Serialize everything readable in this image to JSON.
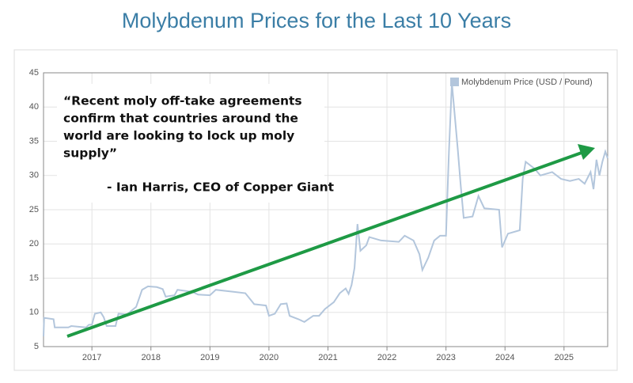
{
  "chart_data": {
    "type": "line",
    "title": "Molybdenum Prices for the Last 10 Years",
    "annotations": [
      "“Recent moly off-take agreements",
      "confirm that countries around the",
      "world are looking to lock up moly",
      "supply”",
      "- Ian Harris, CEO of Copper Giant"
    ],
    "x": [
      2016.18,
      2016.19,
      2016.35,
      2016.37,
      2016.6,
      2016.65,
      2016.9,
      2016.95,
      2017.0,
      2017.05,
      2017.15,
      2017.2,
      2017.25,
      2017.4,
      2017.45,
      2017.6,
      2017.65,
      2017.75,
      2017.85,
      2017.95,
      2018.1,
      2018.2,
      2018.25,
      2018.4,
      2018.45,
      2018.7,
      2018.8,
      2019.0,
      2019.1,
      2019.4,
      2019.6,
      2019.75,
      2019.95,
      2020.0,
      2020.1,
      2020.2,
      2020.3,
      2020.35,
      2020.5,
      2020.6,
      2020.75,
      2020.85,
      2020.95,
      2021.1,
      2021.2,
      2021.3,
      2021.35,
      2021.4,
      2021.45,
      2021.5,
      2021.55,
      2021.65,
      2021.7,
      2021.9,
      2022.2,
      2022.3,
      2022.45,
      2022.55,
      2022.6,
      2022.7,
      2022.8,
      2022.9,
      2023.0,
      2023.05,
      2023.1,
      2023.2,
      2023.25,
      2023.3,
      2023.45,
      2023.55,
      2023.65,
      2023.9,
      2023.95,
      2024.05,
      2024.25,
      2024.3,
      2024.35,
      2024.5,
      2024.6,
      2024.8,
      2024.95,
      2025.1,
      2025.25,
      2025.35,
      2025.45,
      2025.5,
      2025.55,
      2025.6,
      2025.65,
      2025.7,
      2025.74
    ],
    "series": [
      {
        "name": "Molybdenum Price (USD / Pound)",
        "color": "#b3c6dc",
        "values": [
          6.5,
          9.2,
          9.0,
          7.8,
          7.8,
          8.0,
          7.8,
          8.2,
          8.2,
          9.8,
          10.0,
          9.3,
          8.0,
          8.0,
          9.8,
          9.7,
          10.1,
          10.8,
          13.3,
          13.8,
          13.7,
          13.4,
          12.3,
          12.5,
          13.3,
          13.0,
          12.6,
          12.5,
          13.3,
          13.0,
          12.8,
          11.2,
          11.0,
          9.5,
          9.8,
          11.2,
          11.3,
          9.5,
          9.0,
          8.6,
          9.5,
          9.5,
          10.5,
          11.5,
          12.8,
          13.5,
          12.7,
          14.0,
          16.5,
          22.9,
          19.0,
          19.8,
          21.0,
          20.5,
          20.3,
          21.2,
          20.5,
          18.5,
          16.2,
          18.0,
          20.5,
          21.2,
          21.2,
          33.5,
          43.5,
          33.8,
          28.5,
          23.8,
          24.0,
          27.0,
          25.2,
          25.0,
          19.5,
          21.5,
          22.0,
          29.5,
          32.0,
          31.0,
          30.0,
          30.5,
          29.5,
          29.2,
          29.5,
          28.8,
          30.5,
          28.0,
          32.3,
          30.0,
          32.0,
          33.5,
          32.5
        ]
      }
    ],
    "xlim": [
      2016.18,
      2025.74
    ],
    "xticks": [
      2017,
      2018,
      2019,
      2020,
      2021,
      2022,
      2023,
      2024,
      2025
    ],
    "ylim": [
      5,
      45
    ],
    "yticks": [
      5,
      10,
      15,
      20,
      25,
      30,
      35,
      40,
      45
    ],
    "grid": true,
    "legend": "top-right"
  }
}
